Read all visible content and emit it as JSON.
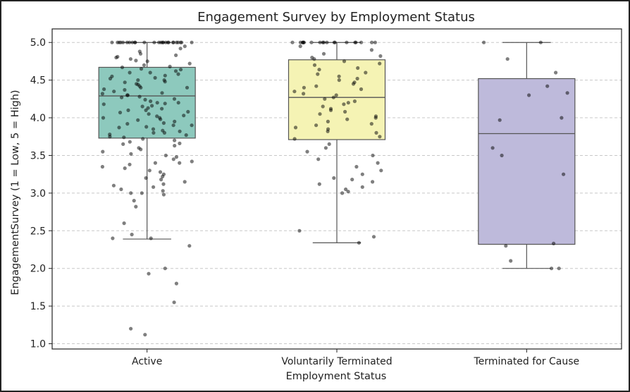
{
  "chart_data": {
    "type": "box",
    "title": "Engagement Survey by Employment Status",
    "xlabel": "Employment Status",
    "ylabel": "EngagementSurvey (1 = Low, 5 = High)",
    "ylim": [
      0.93,
      5.18
    ],
    "yticks": [
      "1.0",
      "1.5",
      "2.0",
      "2.5",
      "3.0",
      "3.5",
      "4.0",
      "4.5",
      "5.0"
    ],
    "grid": "y, dashed",
    "categories": [
      "Active",
      "Voluntarily Terminated",
      "Terminated for Cause"
    ],
    "colors": [
      "#8dc9bd",
      "#f5f3b4",
      "#bebadb"
    ],
    "boxes": [
      {
        "category": "Active",
        "whisker_low": 2.39,
        "q1": 3.73,
        "median": 4.29,
        "q3": 4.67,
        "whisker_high": 5.0
      },
      {
        "category": "Voluntarily Terminated",
        "whisker_low": 2.34,
        "q1": 3.71,
        "median": 4.27,
        "q3": 4.77,
        "whisker_high": 5.0
      },
      {
        "category": "Terminated for Cause",
        "whisker_low": 2.0,
        "q1": 2.32,
        "median": 3.79,
        "q3": 4.52,
        "whisker_high": 5.0
      }
    ],
    "points": [
      [
        5.0,
        5.0,
        5.0,
        5.0,
        5.0,
        5.0,
        5.0,
        5.0,
        5.0,
        5.0,
        5.0,
        5.0,
        5.0,
        5.0,
        5.0,
        5.0,
        5.0,
        5.0,
        5.0,
        5.0,
        5.0,
        5.0,
        5.0,
        5.0,
        5.0,
        5.0,
        4.95,
        4.92,
        4.88,
        4.85,
        4.83,
        4.81,
        4.8,
        4.78,
        4.76,
        4.75,
        4.72,
        4.7,
        4.68,
        4.67,
        4.65,
        4.64,
        4.62,
        4.6,
        4.6,
        4.58,
        4.56,
        4.55,
        4.53,
        4.52,
        4.5,
        4.5,
        4.48,
        4.47,
        4.45,
        4.44,
        4.42,
        4.4,
        4.4,
        4.38,
        4.37,
        4.35,
        4.33,
        4.32,
        4.3,
        4.3,
        4.28,
        4.27,
        4.25,
        4.24,
        4.22,
        4.2,
        4.2,
        4.19,
        4.18,
        4.16,
        4.15,
        4.13,
        4.12,
        4.1,
        4.1,
        4.08,
        4.07,
        4.05,
        4.03,
        4.02,
        4.0,
        4.0,
        3.98,
        3.97,
        3.95,
        3.93,
        3.92,
        3.9,
        3.9,
        3.88,
        3.87,
        3.85,
        3.83,
        3.82,
        3.8,
        3.8,
        3.78,
        3.77,
        3.75,
        3.74,
        3.72,
        3.7,
        3.68,
        3.66,
        3.65,
        3.63,
        3.6,
        3.58,
        3.55,
        3.52,
        3.5,
        3.48,
        3.45,
        3.42,
        3.4,
        3.4,
        3.38,
        3.35,
        3.33,
        3.3,
        3.28,
        3.25,
        3.22,
        3.2,
        3.18,
        3.15,
        3.12,
        3.1,
        3.08,
        3.05,
        3.03,
        3.0,
        3.0,
        2.98,
        2.9,
        2.82,
        2.6,
        2.45,
        2.4,
        2.4,
        2.3,
        2.0,
        1.93,
        1.8,
        1.55,
        1.2,
        1.12
      ],
      [
        5.0,
        5.0,
        5.0,
        5.0,
        5.0,
        5.0,
        5.0,
        5.0,
        5.0,
        5.0,
        5.0,
        5.0,
        5.0,
        5.0,
        5.0,
        5.0,
        5.0,
        5.0,
        5.0,
        4.95,
        4.9,
        4.85,
        4.82,
        4.8,
        4.78,
        4.75,
        4.72,
        4.7,
        4.66,
        4.64,
        4.6,
        4.58,
        4.55,
        4.52,
        4.5,
        4.47,
        4.45,
        4.42,
        4.4,
        4.38,
        4.35,
        4.32,
        4.3,
        4.27,
        4.25,
        4.22,
        4.2,
        4.18,
        4.15,
        4.12,
        4.1,
        4.08,
        4.05,
        4.02,
        4.0,
        3.98,
        3.95,
        3.92,
        3.9,
        3.87,
        3.85,
        3.82,
        3.8,
        3.75,
        3.72,
        3.65,
        3.6,
        3.55,
        3.5,
        3.45,
        3.4,
        3.35,
        3.3,
        3.25,
        3.2,
        3.18,
        3.15,
        3.12,
        3.08,
        3.05,
        3.02,
        3.0,
        2.5,
        2.42,
        2.34
      ],
      [
        5.0,
        5.0,
        4.78,
        4.6,
        4.42,
        4.33,
        4.3,
        4.0,
        3.97,
        3.6,
        3.5,
        3.25,
        2.33,
        2.3,
        2.1,
        2.0,
        2.0
      ]
    ]
  }
}
